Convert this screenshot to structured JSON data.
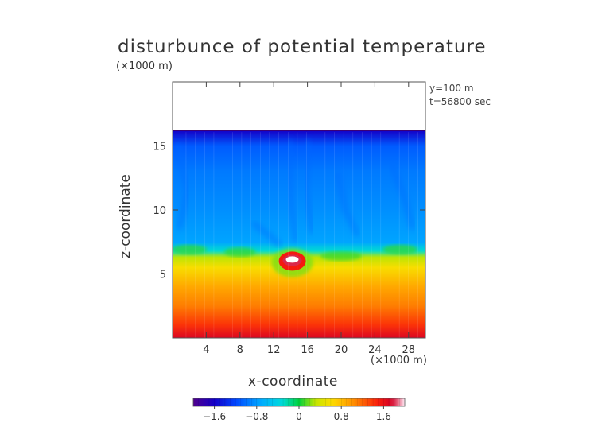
{
  "chart_data": {
    "type": "heatmap",
    "title": "disturbunce of potential temperature",
    "xlabel": "x-coordinate",
    "ylabel": "z-coordinate",
    "x_unit": "(×1000 m)",
    "y_unit": "(×1000 m)",
    "annotations": [
      "y=100 m",
      "t=56800 sec"
    ],
    "xlim": [
      0,
      30
    ],
    "ylim": [
      0,
      20
    ],
    "x_ticks": [
      4,
      8,
      12,
      16,
      20,
      24,
      28
    ],
    "y_ticks": [
      5,
      10,
      15
    ],
    "colorbar": {
      "ticks": [
        -1.6,
        -0.8,
        0,
        0.8,
        1.6
      ],
      "tick_labels": [
        "−1.6",
        "−0.8",
        "0",
        "0.8",
        "1.6"
      ],
      "range": [
        -2.0,
        2.0
      ]
    },
    "field_top_z": 16.2,
    "inversion_z": 6.5,
    "field_profile": [
      {
        "z": 0.0,
        "value": 1.7
      },
      {
        "z": 1.0,
        "value": 1.4
      },
      {
        "z": 2.5,
        "value": 1.1
      },
      {
        "z": 4.0,
        "value": 0.9
      },
      {
        "z": 5.5,
        "value": 0.6
      },
      {
        "z": 6.3,
        "value": 0.3
      },
      {
        "z": 6.8,
        "value": -0.3
      },
      {
        "z": 7.5,
        "value": -0.75
      },
      {
        "z": 10.0,
        "value": -0.85
      },
      {
        "z": 13.0,
        "value": -0.95
      },
      {
        "z": 15.0,
        "value": -1.1
      },
      {
        "z": 16.2,
        "value": -1.6
      }
    ],
    "features": [
      {
        "kind": "warm-bubble",
        "x": 14.2,
        "z": 6.0,
        "value": 2.0
      }
    ]
  }
}
